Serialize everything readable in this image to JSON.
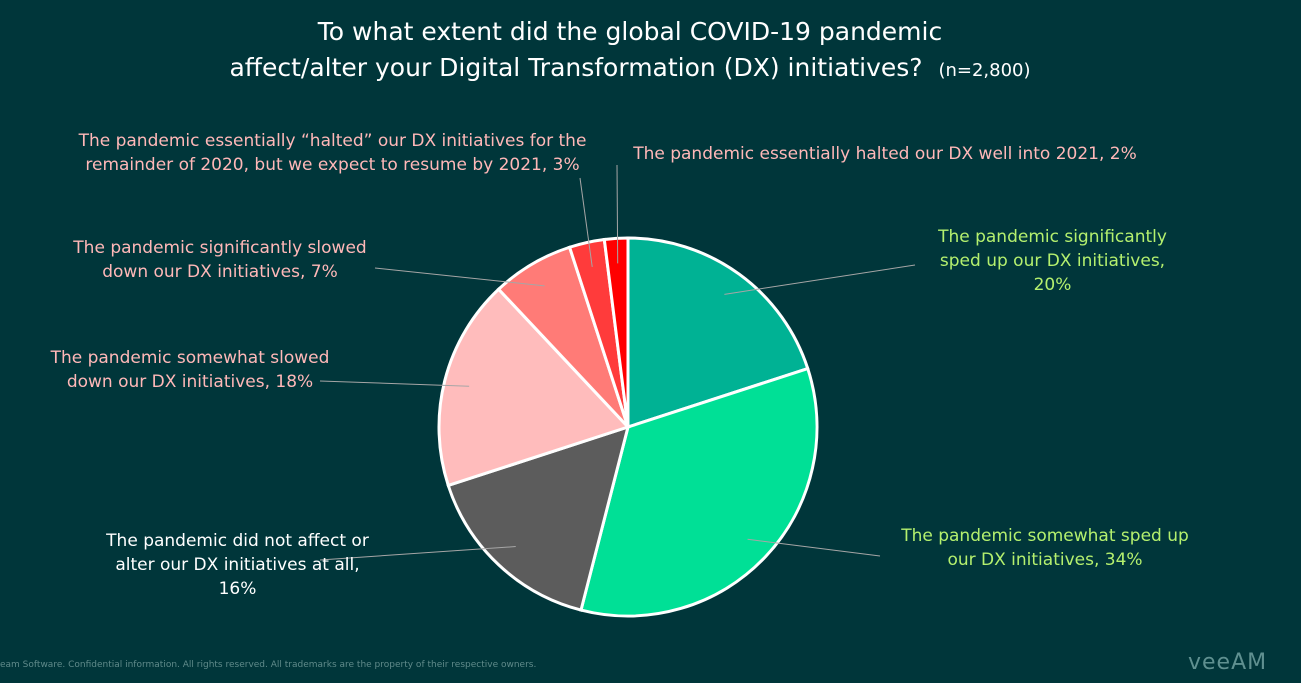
{
  "chart_data": {
    "type": "pie",
    "title_line1": "To what extent did the global COVID-19 pandemic",
    "title_line2": "affect/alter your Digital Transformation (DX) initiatives?",
    "sample": "(n=2,800)",
    "slices": [
      {
        "label": "The pandemic significantly sped up our DX initiatives, 20%",
        "value": 20,
        "color": "#00b294",
        "label_color": "#b4f06e"
      },
      {
        "label": "The pandemic somewhat sped up our DX initiatives, 34%",
        "value": 34,
        "color": "#00e096",
        "label_color": "#b4f06e"
      },
      {
        "label": "The pandemic did not affect or alter our DX initiatives at all, 16%",
        "value": 16,
        "color": "#5c5c5c",
        "label_color": "#ffffff"
      },
      {
        "label": "The pandemic somewhat slowed down our DX initiatives, 18%",
        "value": 18,
        "color": "#ffbcbc",
        "label_color": "#ffb8b8"
      },
      {
        "label": "The pandemic significantly slowed down our DX initiatives, 7%",
        "value": 7,
        "color": "#ff7b77",
        "label_color": "#ffb8b8"
      },
      {
        "label": "The pandemic essentially “halted” our DX initiatives for the remainder of 2020, but we expect to resume by 2021, 3%",
        "value": 3,
        "color": "#ff3b3b",
        "label_color": "#ffb8b8"
      },
      {
        "label": "The pandemic essentially halted our DX well into 2021, 2%",
        "value": 2,
        "color": "#ff0000",
        "label_color": "#ffb8b8"
      }
    ]
  },
  "footer": "eam Software. Confidential information. All rights reserved. All trademarks are the property of their respective owners.",
  "logo": "VEEAM"
}
